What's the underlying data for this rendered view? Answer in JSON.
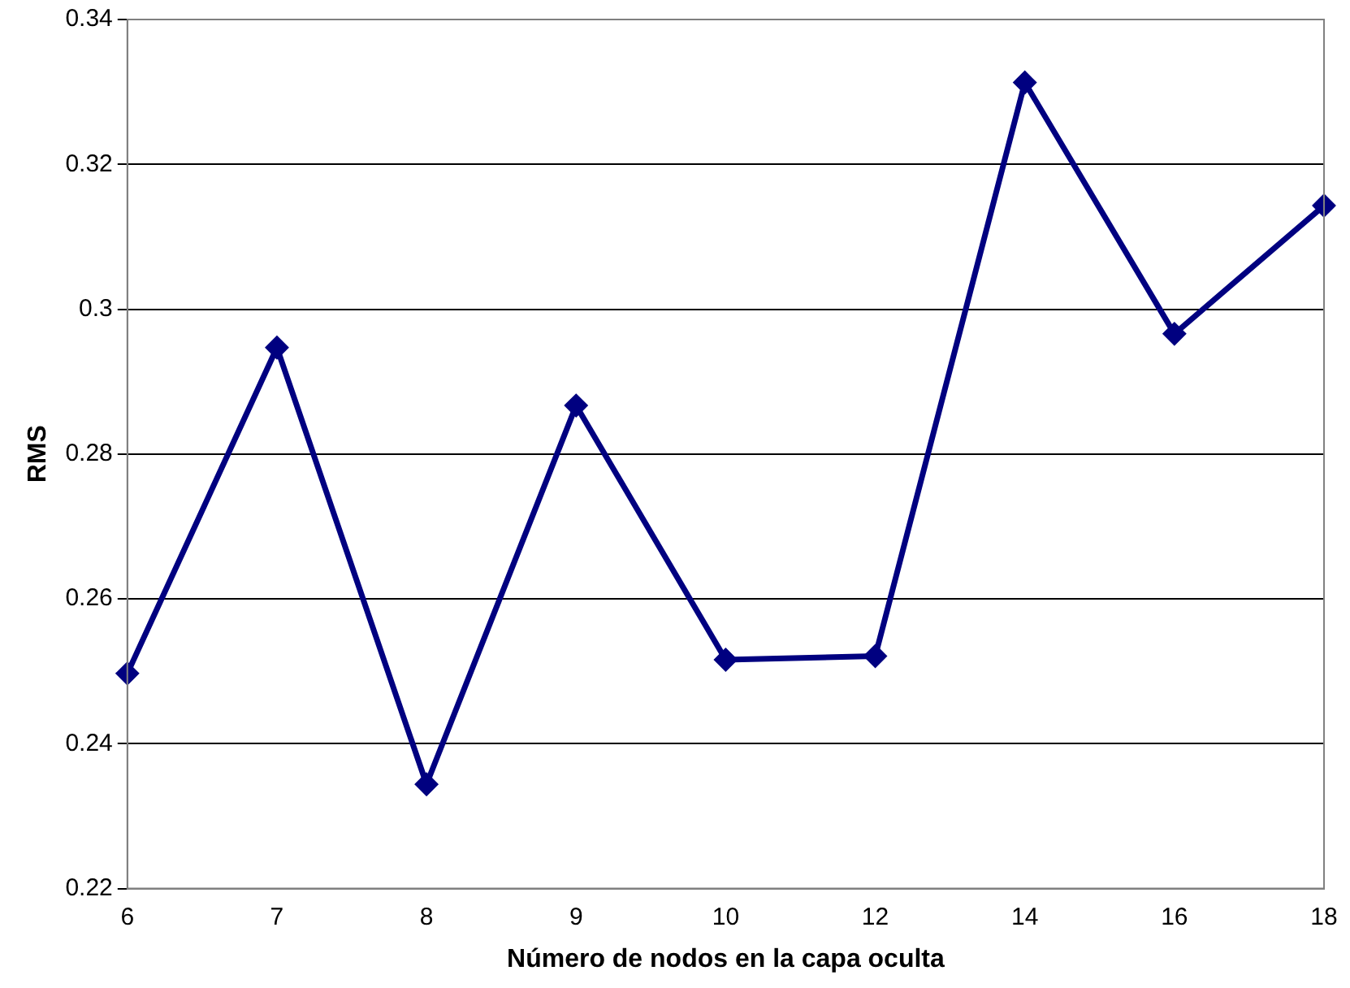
{
  "chart_data": {
    "type": "line",
    "xlabel": "Número de nodos en la capa oculta",
    "ylabel": "RMS",
    "categories": [
      "6",
      "7",
      "8",
      "9",
      "10",
      "12",
      "14",
      "16",
      "18"
    ],
    "series": [
      {
        "color": "#000080",
        "values": [
          0.2497,
          0.2947,
          0.2344,
          0.2867,
          0.2516,
          0.2521,
          0.3313,
          0.2966,
          0.3143
        ]
      }
    ],
    "ylim": [
      0.22,
      0.34
    ],
    "yticks": [
      0.22,
      0.24,
      0.26,
      0.28,
      0.3,
      0.32,
      0.34
    ],
    "grid": "y",
    "legend": false,
    "marker": "diamond",
    "line_style": "solid"
  }
}
